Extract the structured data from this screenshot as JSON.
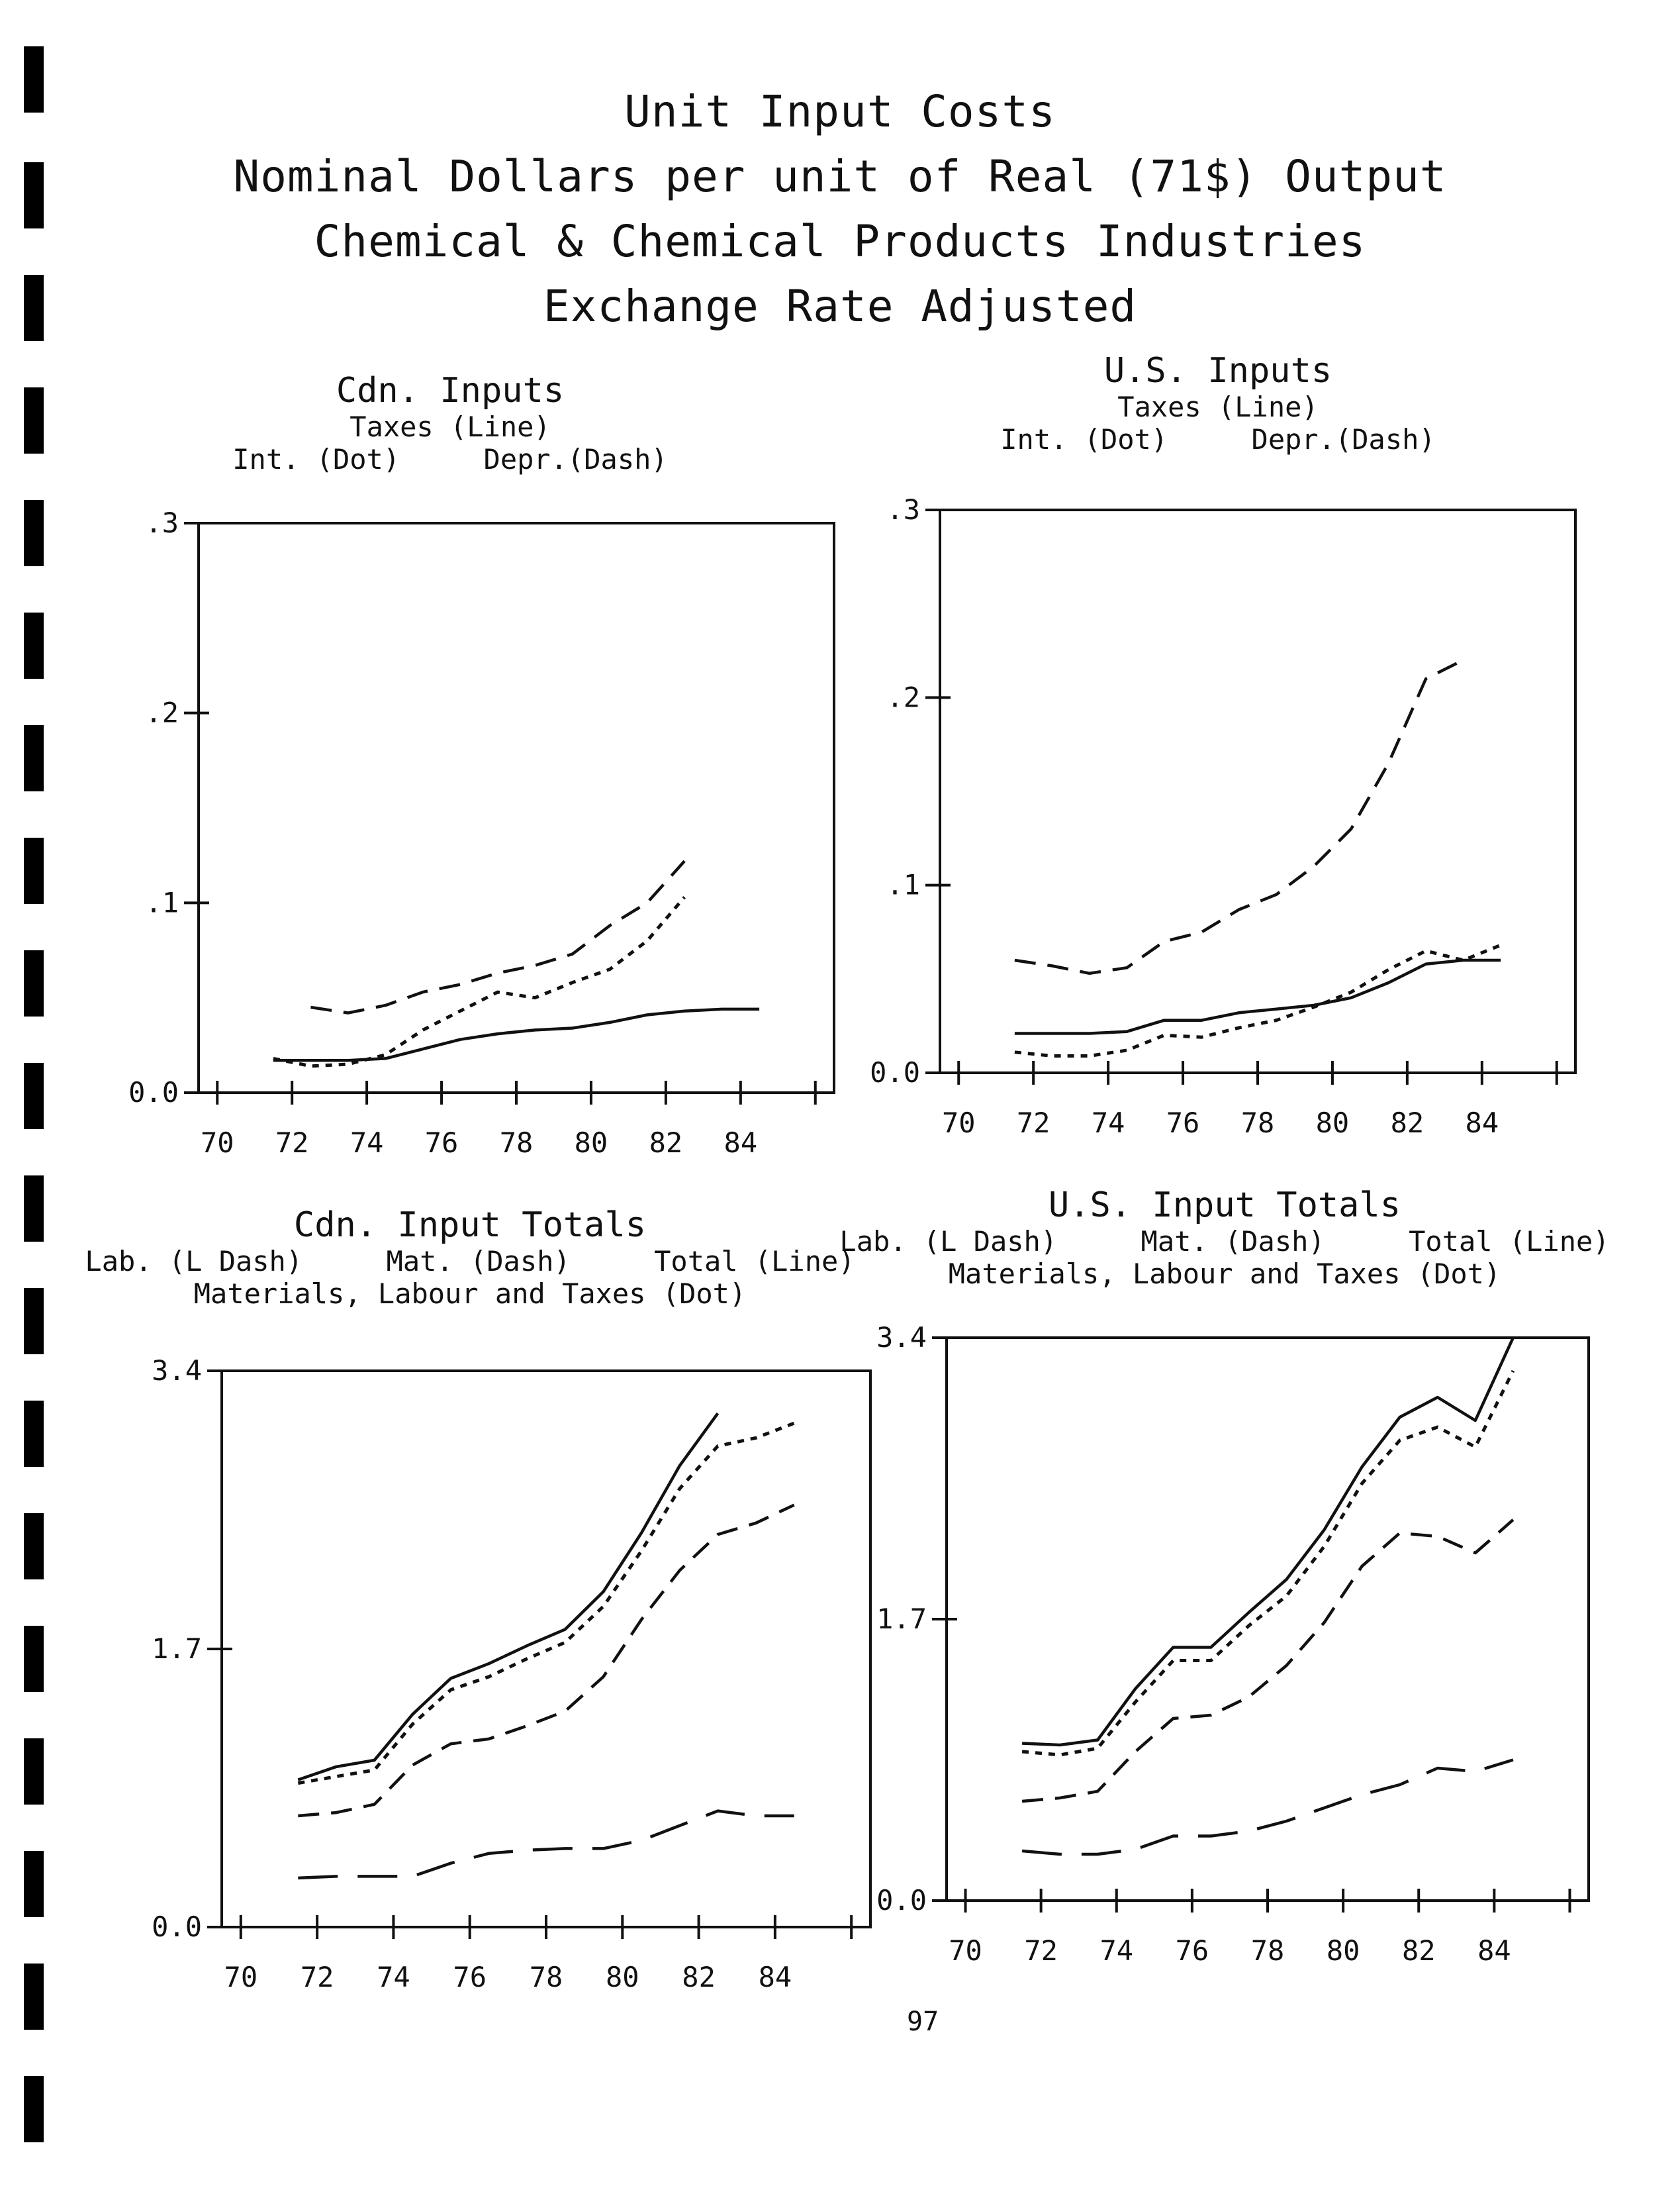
{
  "page": {
    "title_lines": [
      "Unit Input Costs",
      "Nominal Dollars per unit of Real (71$) Output",
      "Chemical & Chemical Products Industries",
      "Exchange Rate Adjusted"
    ],
    "page_number": "97"
  },
  "chart_data": [
    {
      "type": "line",
      "title": "Cdn. Inputs",
      "subtitle_lines": [
        "Taxes (Line)",
        "Int. (Dot)     Depr.(Dash)"
      ],
      "x_ticks": [
        "70",
        "72",
        "74",
        "76",
        "78",
        "80",
        "82",
        "84"
      ],
      "y_ticks": [
        "0.0",
        ".1",
        ".2",
        ".3"
      ],
      "xlim": [
        69.5,
        86.5
      ],
      "ylim": [
        0,
        0.3
      ],
      "series": [
        {
          "name": "Taxes (Line)",
          "style": "solid",
          "x": [
            71.5,
            72.5,
            73.5,
            74.5,
            75.5,
            76.5,
            77.5,
            78.5,
            79.5,
            80.5,
            81.5,
            82.5,
            83.5,
            84.5
          ],
          "values": [
            0.017,
            0.017,
            0.017,
            0.018,
            0.023,
            0.028,
            0.031,
            0.033,
            0.034,
            0.037,
            0.041,
            0.043,
            0.044,
            0.044
          ]
        },
        {
          "name": "Int. (Dot)",
          "style": "dot",
          "x": [
            71.5,
            72.5,
            73.5,
            74.5,
            75.5,
            76.5,
            77.5,
            78.5,
            79.5,
            80.5,
            81.5,
            82.5
          ],
          "values": [
            0.018,
            0.014,
            0.015,
            0.02,
            0.033,
            0.043,
            0.053,
            0.05,
            0.058,
            0.065,
            0.08,
            0.103
          ]
        },
        {
          "name": "Depr.(Dash)",
          "style": "dash",
          "x": [
            72.5,
            73.5,
            74.5,
            75.5,
            76.5,
            77.5,
            78.5,
            79.5,
            80.5,
            81.5,
            82.5
          ],
          "values": [
            0.045,
            0.042,
            0.046,
            0.053,
            0.057,
            0.063,
            0.067,
            0.073,
            0.088,
            0.1,
            0.122
          ]
        }
      ]
    },
    {
      "type": "line",
      "title": "U.S. Inputs",
      "subtitle_lines": [
        "Taxes (Line)",
        "Int. (Dot)     Depr.(Dash)"
      ],
      "x_ticks": [
        "70",
        "72",
        "74",
        "76",
        "78",
        "80",
        "82",
        "84"
      ],
      "y_ticks": [
        "0.0",
        ".1",
        ".2",
        ".3"
      ],
      "xlim": [
        69.5,
        86.5
      ],
      "ylim": [
        0,
        0.3
      ],
      "series": [
        {
          "name": "Taxes (Line)",
          "style": "solid",
          "x": [
            71.5,
            72.5,
            73.5,
            74.5,
            75.5,
            76.5,
            77.5,
            78.5,
            79.5,
            80.5,
            81.5,
            82.5,
            83.5,
            84.5
          ],
          "values": [
            0.021,
            0.021,
            0.021,
            0.022,
            0.028,
            0.028,
            0.032,
            0.034,
            0.036,
            0.04,
            0.048,
            0.058,
            0.06,
            0.06
          ]
        },
        {
          "name": "Int. (Dot)",
          "style": "dot",
          "x": [
            71.5,
            72.5,
            73.5,
            74.5,
            75.5,
            76.5,
            77.5,
            78.5,
            79.5,
            80.5,
            81.5,
            82.5,
            83.5,
            84.5
          ],
          "values": [
            0.011,
            0.009,
            0.009,
            0.012,
            0.02,
            0.019,
            0.024,
            0.028,
            0.035,
            0.043,
            0.055,
            0.065,
            0.06,
            0.068
          ]
        },
        {
          "name": "Depr.(Dash)",
          "style": "dash",
          "x": [
            71.5,
            72.5,
            73.5,
            74.5,
            75.5,
            76.5,
            77.5,
            78.5,
            79.5,
            80.5,
            81.5,
            82.5,
            83.5
          ],
          "values": [
            0.06,
            0.057,
            0.053,
            0.056,
            0.07,
            0.075,
            0.087,
            0.095,
            0.11,
            0.13,
            0.165,
            0.21,
            0.22
          ]
        }
      ]
    },
    {
      "type": "line",
      "title": "Cdn. Input Totals",
      "subtitle_lines": [
        "Lab. (L Dash)     Mat. (Dash)     Total (Line)",
        "Materials, Labour and Taxes (Dot)"
      ],
      "x_ticks": [
        "70",
        "72",
        "74",
        "76",
        "78",
        "80",
        "82",
        "84"
      ],
      "y_ticks": [
        "0.0",
        "1.7",
        "3.4"
      ],
      "xlim": [
        69.5,
        86.5
      ],
      "ylim": [
        0,
        3.4
      ],
      "series": [
        {
          "name": "Lab. (L Dash)",
          "style": "ldash",
          "x": [
            71.5,
            72.5,
            73.5,
            74.5,
            75.5,
            76.5,
            77.5,
            78.5,
            79.5,
            80.5,
            81.5,
            82.5,
            83.5,
            84.5
          ],
          "values": [
            0.3,
            0.31,
            0.31,
            0.31,
            0.39,
            0.45,
            0.47,
            0.48,
            0.48,
            0.53,
            0.62,
            0.71,
            0.68,
            0.68
          ]
        },
        {
          "name": "Mat. (Dash)",
          "style": "dash",
          "x": [
            71.5,
            72.5,
            73.5,
            74.5,
            75.5,
            76.5,
            77.5,
            78.5,
            79.5,
            80.5,
            81.5,
            82.5,
            83.5,
            84.5
          ],
          "values": [
            0.68,
            0.7,
            0.75,
            0.99,
            1.12,
            1.15,
            1.23,
            1.32,
            1.53,
            1.88,
            2.18,
            2.4,
            2.47,
            2.58
          ]
        },
        {
          "name": "Total (Line)",
          "style": "solid",
          "x": [
            71.5,
            72.5,
            73.5,
            74.5,
            75.5,
            76.5,
            77.5,
            78.5,
            79.5,
            80.5,
            81.5,
            82.5
          ],
          "values": [
            0.9,
            0.98,
            1.02,
            1.3,
            1.52,
            1.61,
            1.72,
            1.82,
            2.05,
            2.41,
            2.82,
            3.14
          ]
        },
        {
          "name": "Materials, Labour and Taxes (Dot)",
          "style": "dot",
          "x": [
            71.5,
            72.5,
            73.5,
            74.5,
            75.5,
            76.5,
            77.5,
            78.5,
            79.5,
            80.5,
            81.5,
            82.5,
            83.5,
            84.5
          ],
          "values": [
            0.88,
            0.92,
            0.96,
            1.24,
            1.45,
            1.53,
            1.64,
            1.74,
            1.96,
            2.3,
            2.68,
            2.94,
            2.99,
            3.08
          ]
        }
      ]
    },
    {
      "type": "line",
      "title": "U.S. Input Totals",
      "subtitle_lines": [
        "Lab. (L Dash)     Mat. (Dash)     Total (Line)",
        "Materials, Labour and Taxes (Dot)"
      ],
      "x_ticks": [
        "70",
        "72",
        "74",
        "76",
        "78",
        "80",
        "82",
        "84"
      ],
      "y_ticks": [
        "0.0",
        "1.7",
        "3.4"
      ],
      "xlim": [
        69.5,
        86.5
      ],
      "ylim": [
        0,
        3.4
      ],
      "series": [
        {
          "name": "Lab. (L Dash)",
          "style": "ldash",
          "x": [
            71.5,
            72.5,
            73.5,
            74.5,
            75.5,
            76.5,
            77.5,
            78.5,
            79.5,
            80.5,
            81.5,
            82.5,
            83.5,
            84.5
          ],
          "values": [
            0.3,
            0.28,
            0.28,
            0.31,
            0.39,
            0.39,
            0.42,
            0.48,
            0.56,
            0.64,
            0.7,
            0.8,
            0.78,
            0.85
          ]
        },
        {
          "name": "Mat. (Dash)",
          "style": "dash",
          "x": [
            71.5,
            72.5,
            73.5,
            74.5,
            75.5,
            76.5,
            77.5,
            78.5,
            79.5,
            80.5,
            81.5,
            82.5,
            83.5,
            84.5
          ],
          "values": [
            0.6,
            0.62,
            0.66,
            0.9,
            1.1,
            1.12,
            1.23,
            1.42,
            1.68,
            2.02,
            2.22,
            2.2,
            2.1,
            2.3
          ]
        },
        {
          "name": "Total (Line)",
          "style": "solid",
          "x": [
            71.5,
            72.5,
            73.5,
            74.5,
            75.5,
            76.5,
            77.5,
            78.5,
            79.5,
            80.5,
            81.5,
            82.5,
            83.5,
            84.5
          ],
          "values": [
            0.95,
            0.94,
            0.97,
            1.28,
            1.53,
            1.53,
            1.74,
            1.94,
            2.24,
            2.62,
            2.92,
            3.04,
            2.9,
            3.4
          ]
        },
        {
          "name": "Materials, Labour and Taxes (Dot)",
          "style": "dot",
          "x": [
            71.5,
            72.5,
            73.5,
            74.5,
            75.5,
            76.5,
            77.5,
            78.5,
            79.5,
            80.5,
            81.5,
            82.5,
            83.5,
            84.5
          ],
          "values": [
            0.9,
            0.88,
            0.92,
            1.2,
            1.45,
            1.45,
            1.66,
            1.84,
            2.14,
            2.52,
            2.78,
            2.86,
            2.74,
            3.2
          ]
        }
      ]
    }
  ]
}
